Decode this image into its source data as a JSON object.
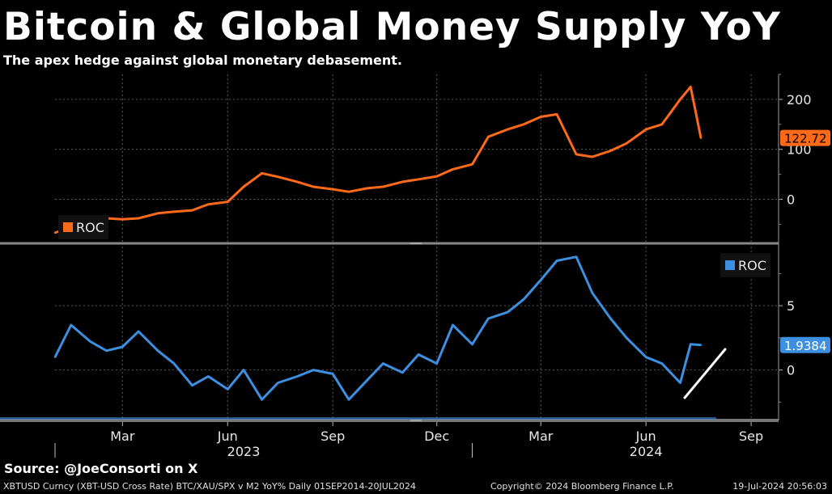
{
  "header": {
    "title": "Bitcoin & Global Money Supply YoY",
    "subtitle": "The apex hedge against global monetary debasement."
  },
  "footer": {
    "source": "Source: @JoeConsorti on X",
    "ticker": "XBTUSD Curncy (XBT-USD Cross Rate) BTC/XAU/SPX v M2 YoY%  Daily 01SEP2014-20JUL2024",
    "copyright": "Copyright© 2024 Bloomberg Finance L.P.",
    "timestamp": "19-Jul-2024 20:56:03"
  },
  "colors": {
    "top_series": "#ff6a1a",
    "bottom_series": "#3d8fe0",
    "background": "#000000",
    "grid": "#5a5a5a"
  },
  "chart_data": [
    {
      "type": "line",
      "panel": "top",
      "legend": "ROC",
      "legend_position": "bottom-left",
      "ylim": [
        -85,
        250
      ],
      "yticks": [
        0,
        100,
        200
      ],
      "last_value": "122.72",
      "grid": true,
      "series": [
        {
          "name": "ROC",
          "x": [
            "2023-01-01",
            "2023-01-15",
            "2023-02-01",
            "2023-02-15",
            "2023-03-01",
            "2023-03-15",
            "2023-04-01",
            "2023-04-15",
            "2023-05-01",
            "2023-05-15",
            "2023-06-01",
            "2023-06-15",
            "2023-07-01",
            "2023-07-15",
            "2023-08-01",
            "2023-08-15",
            "2023-09-01",
            "2023-09-15",
            "2023-10-01",
            "2023-10-15",
            "2023-11-01",
            "2023-11-15",
            "2023-12-01",
            "2023-12-15",
            "2024-01-01",
            "2024-01-15",
            "2024-02-01",
            "2024-02-15",
            "2024-03-01",
            "2024-03-15",
            "2024-04-01",
            "2024-04-15",
            "2024-05-01",
            "2024-05-15",
            "2024-06-01",
            "2024-06-15",
            "2024-07-01",
            "2024-07-10",
            "2024-07-19"
          ],
          "values": [
            -67,
            -55,
            -47,
            -38,
            -40,
            -38,
            -28,
            -25,
            -22,
            -10,
            -5,
            25,
            52,
            45,
            35,
            25,
            20,
            15,
            22,
            25,
            35,
            40,
            46,
            60,
            70,
            125,
            140,
            150,
            165,
            170,
            90,
            85,
            97,
            112,
            140,
            150,
            200,
            225,
            122.72
          ]
        }
      ]
    },
    {
      "type": "line",
      "panel": "bottom",
      "legend": "ROC",
      "legend_position": "top-right",
      "ylim": [
        -3.8,
        9.6
      ],
      "yticks": [
        0,
        5
      ],
      "last_value": "1.9384",
      "grid": true,
      "series": [
        {
          "name": "ROC",
          "x": [
            "2023-01-01",
            "2023-01-15",
            "2023-02-01",
            "2023-02-15",
            "2023-03-01",
            "2023-03-15",
            "2023-04-01",
            "2023-04-15",
            "2023-05-01",
            "2023-05-15",
            "2023-06-01",
            "2023-06-15",
            "2023-07-01",
            "2023-07-15",
            "2023-08-01",
            "2023-08-15",
            "2023-09-01",
            "2023-09-15",
            "2023-10-01",
            "2023-10-15",
            "2023-11-01",
            "2023-11-15",
            "2023-12-01",
            "2023-12-15",
            "2024-01-01",
            "2024-01-15",
            "2024-02-01",
            "2024-02-15",
            "2024-03-01",
            "2024-03-15",
            "2024-04-01",
            "2024-04-15",
            "2024-05-01",
            "2024-05-15",
            "2024-06-01",
            "2024-06-15",
            "2024-07-01",
            "2024-07-10",
            "2024-07-19"
          ],
          "values": [
            1.0,
            3.5,
            2.2,
            1.5,
            1.8,
            3.0,
            1.5,
            0.5,
            -1.2,
            -0.5,
            -1.5,
            0.0,
            -2.3,
            -1.0,
            -0.5,
            0.0,
            -0.3,
            -2.3,
            -0.8,
            0.5,
            -0.2,
            1.2,
            0.5,
            3.5,
            2.0,
            4.0,
            4.5,
            5.5,
            7.0,
            8.5,
            8.8,
            6.0,
            4.0,
            2.5,
            1.0,
            0.5,
            -1.0,
            2.0,
            1.9384
          ]
        }
      ]
    }
  ],
  "x_axis": {
    "months": [
      {
        "label": "Mar",
        "date": "2023-03-01"
      },
      {
        "label": "Jun",
        "date": "2023-06-01"
      },
      {
        "label": "Sep",
        "date": "2023-09-01"
      },
      {
        "label": "Dec",
        "date": "2023-12-01"
      },
      {
        "label": "Mar",
        "date": "2024-03-01"
      },
      {
        "label": "Jun",
        "date": "2024-06-01"
      },
      {
        "label": "Sep",
        "date": "2024-09-01"
      }
    ],
    "years": [
      {
        "label": "2023",
        "date": "2023-06-15"
      },
      {
        "label": "2024",
        "date": "2024-06-01"
      }
    ],
    "year_divider": "2024-01-01",
    "range": [
      "2023-01-01",
      "2024-09-25"
    ]
  }
}
